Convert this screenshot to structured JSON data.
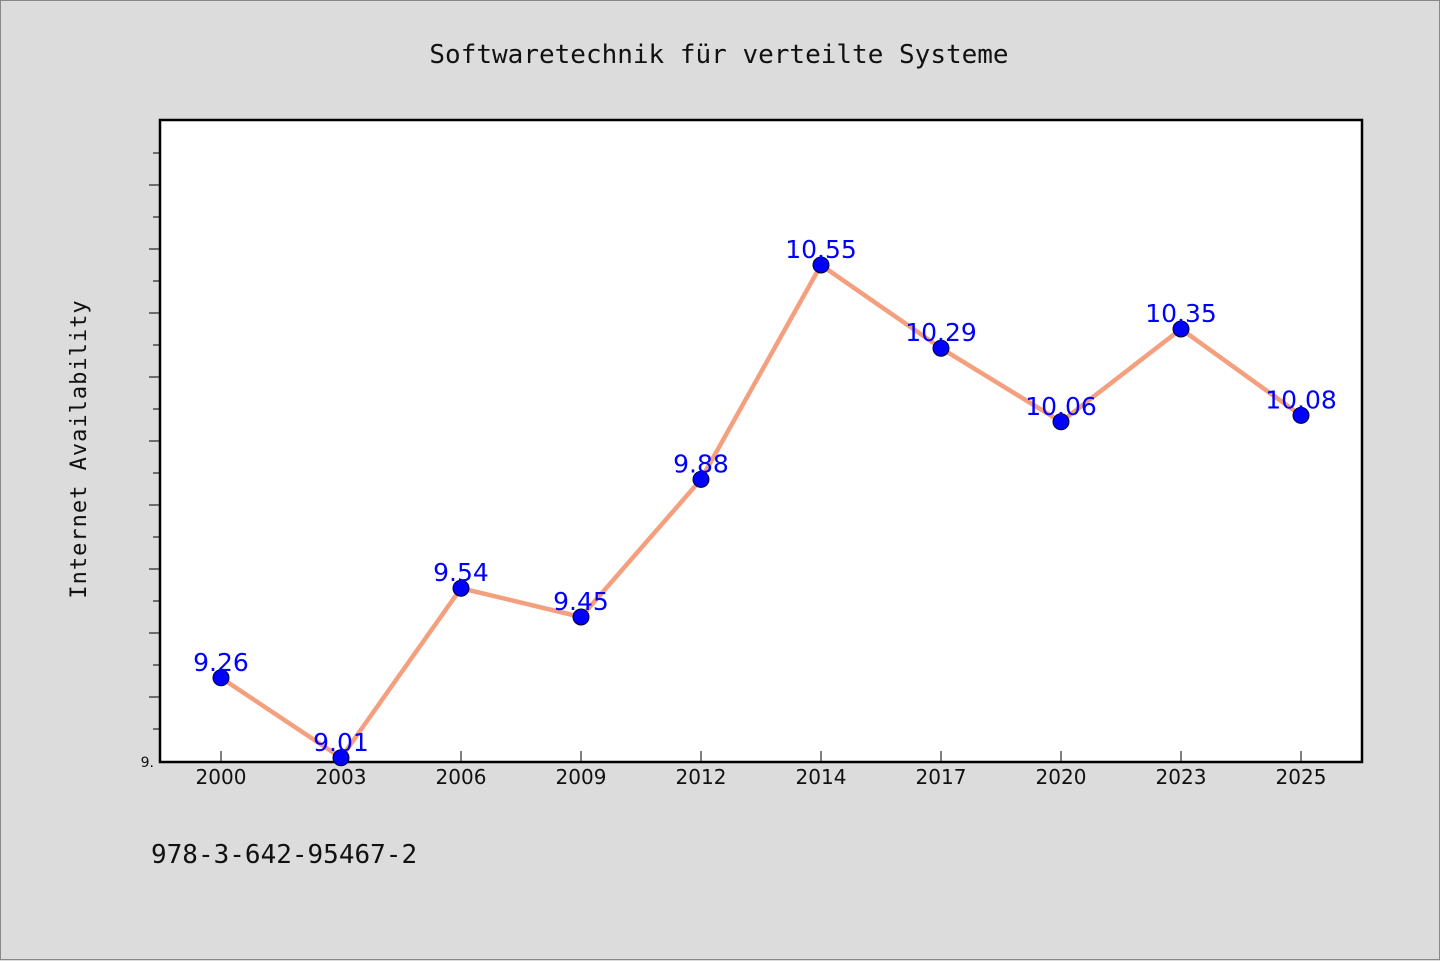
{
  "chart_data": {
    "type": "line",
    "title": "Softwaretechnik für verteilte Systeme",
    "xlabel": "",
    "ylabel": "Internet Availability",
    "categories": [
      "2000",
      "2003",
      "2006",
      "2009",
      "2012",
      "2014",
      "2017",
      "2020",
      "2023",
      "2025"
    ],
    "values": [
      9.26,
      9.01,
      9.54,
      9.45,
      9.88,
      10.55,
      10.29,
      10.06,
      10.35,
      10.08
    ],
    "data_labels": [
      "9.26",
      "9.01",
      "9.54",
      "9.45",
      "9.88",
      "10.55",
      "10.29",
      "10.06",
      "10.35",
      "10.08"
    ],
    "ylim": [
      9.0,
      11.0
    ],
    "y_tick_label": "9.",
    "grid": false,
    "legend": "none",
    "line_color": "#f4a07e",
    "marker_color": "#0000ff",
    "label_color": "#0000ff",
    "plot_background": "#ffffff",
    "figure_background": "#dcdcdc"
  },
  "footer": {
    "isbn": "978-3-642-95467-2"
  }
}
